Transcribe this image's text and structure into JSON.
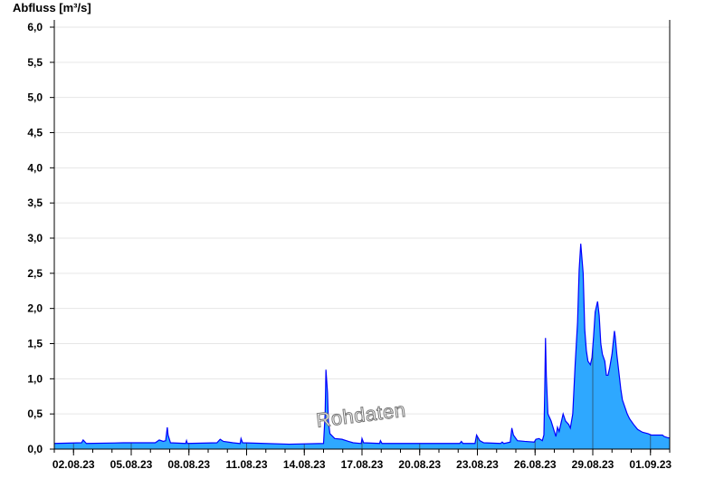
{
  "chart_data": {
    "type": "area",
    "ylabel": "Abfluss [m³/s]",
    "xlabel": "",
    "ylim": [
      0,
      6
    ],
    "xlim": [
      "01.08.23 00:00",
      "02.09.23 00:00"
    ],
    "y_ticks": [
      "0,0",
      "0,5",
      "1,0",
      "1,5",
      "2,0",
      "2,5",
      "3,0",
      "3,5",
      "4,0",
      "4,5",
      "5,0",
      "5,5",
      "6,0"
    ],
    "x_ticks": [
      "02.08.23",
      "05.08.23",
      "08.08.23",
      "11.08.23",
      "14.08.23",
      "17.08.23",
      "20.08.23",
      "23.08.23",
      "26.08.23",
      "29.08.23",
      "01.09.23"
    ],
    "grid": "horizontal",
    "fill_color": "#2ea8ff",
    "line_color": "#0000ff",
    "watermark": "Rohdaten",
    "series": [
      {
        "points": [
          [
            "01.08.23 00:00",
            0.08
          ],
          [
            "02.08.23 10:00",
            0.09
          ],
          [
            "02.08.23 12:00",
            0.13
          ],
          [
            "02.08.23 16:00",
            0.08
          ],
          [
            "04.08.23 14:00",
            0.09
          ],
          [
            "06.08.23 06:00",
            0.09
          ],
          [
            "06.08.23 11:00",
            0.13
          ],
          [
            "06.08.23 16:00",
            0.11
          ],
          [
            "06.08.23 19:00",
            0.12
          ],
          [
            "06.08.23 21:00",
            0.31
          ],
          [
            "06.08.23 22:00",
            0.2
          ],
          [
            "07.08.23 01:00",
            0.09
          ],
          [
            "07.08.23 20:00",
            0.08
          ],
          [
            "07.08.23 21:00",
            0.12
          ],
          [
            "07.08.23 22:00",
            0.08
          ],
          [
            "09.08.23 11:00",
            0.09
          ],
          [
            "09.08.23 15:00",
            0.14
          ],
          [
            "09.08.23 19:00",
            0.11
          ],
          [
            "10.08.23 07:00",
            0.09
          ],
          [
            "10.08.23 16:00",
            0.08
          ],
          [
            "10.08.23 17:00",
            0.15
          ],
          [
            "10.08.23 19:00",
            0.09
          ],
          [
            "13.08.23 05:00",
            0.07
          ],
          [
            "15.08.23 00:00",
            0.08
          ],
          [
            "15.08.23 02:00",
            0.5
          ],
          [
            "15.08.23 03:00",
            1.13
          ],
          [
            "15.08.23 05:00",
            0.8
          ],
          [
            "15.08.23 06:00",
            0.4
          ],
          [
            "15.08.23 08:00",
            0.22
          ],
          [
            "15.08.23 14:00",
            0.15
          ],
          [
            "15.08.23 23:00",
            0.14
          ],
          [
            "16.08.23 07:00",
            0.11
          ],
          [
            "16.08.23 13:00",
            0.09
          ],
          [
            "16.08.23 23:00",
            0.08
          ],
          [
            "17.08.23 00:00",
            0.15
          ],
          [
            "17.08.23 02:00",
            0.09
          ],
          [
            "17.08.23 22:00",
            0.08
          ],
          [
            "17.08.23 23:00",
            0.12
          ],
          [
            "18.08.23 01:00",
            0.08
          ],
          [
            "22.08.23 02:00",
            0.08
          ],
          [
            "22.08.23 04:00",
            0.11
          ],
          [
            "22.08.23 06:00",
            0.08
          ],
          [
            "22.08.23 21:00",
            0.08
          ],
          [
            "22.08.23 23:00",
            0.2
          ],
          [
            "23.08.23 03:00",
            0.12
          ],
          [
            "23.08.23 08:00",
            0.09
          ],
          [
            "24.08.23 05:00",
            0.08
          ],
          [
            "24.08.23 07:00",
            0.1
          ],
          [
            "24.08.23 09:00",
            0.08
          ],
          [
            "24.08.23 17:00",
            0.1
          ],
          [
            "24.08.23 19:00",
            0.3
          ],
          [
            "24.08.23 21:00",
            0.2
          ],
          [
            "25.08.23 02:00",
            0.12
          ],
          [
            "25.08.23 11:00",
            0.11
          ],
          [
            "25.08.23 23:00",
            0.1
          ],
          [
            "26.08.23 01:00",
            0.14
          ],
          [
            "26.08.23 05:00",
            0.15
          ],
          [
            "26.08.23 09:00",
            0.12
          ],
          [
            "26.08.23 11:00",
            0.2
          ],
          [
            "26.08.23 12:00",
            0.8
          ],
          [
            "26.08.23 13:00",
            1.58
          ],
          [
            "26.08.23 14:00",
            1.05
          ],
          [
            "26.08.23 16:00",
            0.5
          ],
          [
            "26.08.23 18:00",
            0.45
          ],
          [
            "26.08.23 20:00",
            0.4
          ],
          [
            "27.08.23 00:00",
            0.25
          ],
          [
            "27.08.23 02:00",
            0.18
          ],
          [
            "27.08.23 04:00",
            0.31
          ],
          [
            "27.08.23 06:00",
            0.25
          ],
          [
            "27.08.23 08:00",
            0.35
          ],
          [
            "27.08.23 11:00",
            0.5
          ],
          [
            "27.08.23 14:00",
            0.4
          ],
          [
            "27.08.23 18:00",
            0.35
          ],
          [
            "27.08.23 20:00",
            0.3
          ],
          [
            "27.08.23 23:00",
            0.5
          ],
          [
            "28.08.23 02:00",
            1.2
          ],
          [
            "28.08.23 05:00",
            1.8
          ],
          [
            "28.08.23 07:00",
            2.55
          ],
          [
            "28.08.23 09:00",
            2.92
          ],
          [
            "28.08.23 12:00",
            2.5
          ],
          [
            "28.08.23 14:00",
            1.7
          ],
          [
            "28.08.23 16:00",
            1.4
          ],
          [
            "28.08.23 18:00",
            1.25
          ],
          [
            "28.08.23 21:00",
            1.2
          ],
          [
            "28.08.23 23:00",
            1.3
          ],
          [
            "29.08.23 01:00",
            1.6
          ],
          [
            "29.08.23 03:00",
            1.95
          ],
          [
            "29.08.23 06:00",
            2.1
          ],
          [
            "29.08.23 08:00",
            1.9
          ],
          [
            "29.08.23 10:00",
            1.5
          ],
          [
            "29.08.23 12:00",
            1.35
          ],
          [
            "29.08.23 15:00",
            1.25
          ],
          [
            "29.08.23 17:00",
            1.05
          ],
          [
            "29.08.23 19:00",
            1.05
          ],
          [
            "29.08.23 21:00",
            1.15
          ],
          [
            "30.08.23 00:00",
            1.35
          ],
          [
            "30.08.23 03:00",
            1.68
          ],
          [
            "30.08.23 04:00",
            1.6
          ],
          [
            "30.08.23 06:00",
            1.35
          ],
          [
            "30.08.23 09:00",
            1.05
          ],
          [
            "30.08.23 11:00",
            0.85
          ],
          [
            "30.08.23 13:00",
            0.7
          ],
          [
            "30.08.23 16:00",
            0.6
          ],
          [
            "30.08.23 19:00",
            0.5
          ],
          [
            "30.08.23 22:00",
            0.43
          ],
          [
            "31.08.23 03:00",
            0.35
          ],
          [
            "31.08.23 08:00",
            0.28
          ],
          [
            "31.08.23 14:00",
            0.24
          ],
          [
            "31.08.23 21:00",
            0.22
          ],
          [
            "01.09.23 01:00",
            0.2
          ],
          [
            "01.09.23 15:00",
            0.2
          ],
          [
            "01.09.23 17:00",
            0.18
          ],
          [
            "01.09.23 22:00",
            0.16
          ],
          [
            "02.09.23 00:00",
            0.16
          ]
        ]
      }
    ]
  }
}
